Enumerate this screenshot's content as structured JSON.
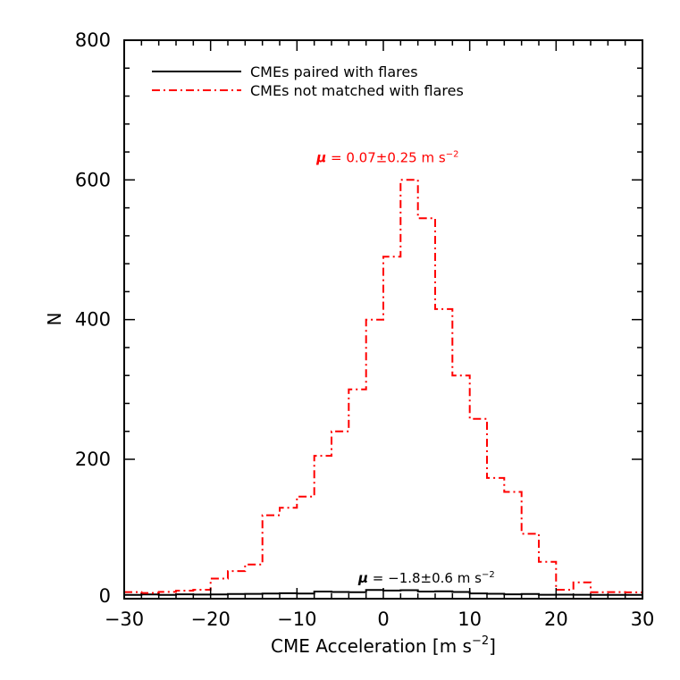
{
  "chart_data": {
    "type": "histogram",
    "xlabel": "CME Acceleration [m s",
    "xlabel_sup": "−2",
    "xlabel_tail": "]",
    "ylabel": "N",
    "xlim": [
      -30,
      30
    ],
    "ylim": [
      0,
      800
    ],
    "y_nonlinear_bottom": {
      "break_value": 200,
      "zero_gap_value": 60
    },
    "xticks": [
      -30,
      -20,
      -10,
      0,
      10,
      20,
      30
    ],
    "xtick_labels": [
      "−30",
      "−20",
      "−10",
      "0",
      "10",
      "20",
      "30"
    ],
    "yticks": [
      0,
      200,
      400,
      600,
      800
    ],
    "ytick_labels": [
      "0",
      "200",
      "400",
      "600",
      "800"
    ],
    "bin_edges": [
      -30,
      -28,
      -26,
      -24,
      -22,
      -20,
      -18,
      -16,
      -14,
      -12,
      -10,
      -8,
      -6,
      -4,
      -2,
      0,
      2,
      4,
      6,
      8,
      10,
      12,
      14,
      16,
      18,
      20,
      22,
      24,
      26,
      28,
      30
    ],
    "series": [
      {
        "name": "CMEs paired with flares",
        "color": "#000000",
        "style": "solid",
        "values": [
          2,
          7,
          2,
          9,
          6,
          8,
          12,
          14,
          17,
          21,
          17,
          40,
          35,
          33,
          58,
          51,
          55,
          40,
          43,
          35,
          19,
          15,
          9,
          12,
          4,
          5,
          4,
          3,
          2,
          3
        ],
        "annotation": {
          "mu": "μ",
          "text": " = −1.8±0.6 m s",
          "sup": "−2",
          "x": 5,
          "y": 60
        }
      },
      {
        "name": "CMEs not matched with flares",
        "color": "#ff0000",
        "style": "dashdot",
        "values": [
          34,
          24,
          36,
          50,
          60,
          72,
          80,
          87,
          140,
          148,
          160,
          205,
          240,
          300,
          400,
          490,
          600,
          545,
          415,
          320,
          258,
          180,
          165,
          120,
          90,
          60,
          68,
          32,
          34,
          31
        ],
        "annotation": {
          "mu": "μ",
          "text": " = 0.07±0.25 m s",
          "sup": "−2",
          "x": 0.5,
          "y": 615
        }
      }
    ],
    "legend_position": "top-left"
  }
}
